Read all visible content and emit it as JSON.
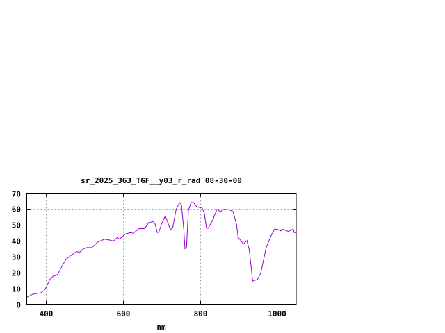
{
  "chart_data": {
    "type": "line",
    "title": "sr_2025_363_TGF__y03_r_rad 08-30-00",
    "xlabel": "nm",
    "ylabel": "",
    "xlim": [
      350,
      1050
    ],
    "ylim": [
      0,
      70
    ],
    "xticks": [
      400,
      600,
      800,
      1000
    ],
    "yticks": [
      0,
      10,
      20,
      30,
      40,
      50,
      60,
      70
    ],
    "grid": true,
    "line_color": "#9400d3",
    "series": [
      {
        "x": [
          350,
          365,
          377,
          386,
          395,
          401,
          410,
          419,
          426,
          431,
          440,
          452,
          464,
          473,
          479,
          488,
          497,
          506,
          519,
          534,
          552,
          564,
          575,
          585,
          591,
          606,
          618,
          627,
          642,
          657,
          666,
          678,
          683,
          689,
          693,
          702,
          710,
          716,
          723,
          729,
          738,
          747,
          752,
          758,
          761,
          765,
          770,
          777,
          784,
          792,
          805,
          811,
          817,
          821,
          832,
          844,
          853,
          862,
          877,
          886,
          895,
          899,
          913,
          922,
          928,
          937,
          949,
          958,
          972,
          985,
          994,
          1003,
          1010,
          1014,
          1021,
          1030,
          1036,
          1042,
          1045,
          1050
        ],
        "y": [
          4.4,
          6.3,
          6.9,
          7.1,
          8.7,
          10.9,
          15.6,
          17.8,
          18.2,
          19,
          23.3,
          28.4,
          30.6,
          32.1,
          33.2,
          32.8,
          35,
          35.7,
          35.7,
          39.2,
          41,
          40.5,
          39.8,
          42,
          41.1,
          44.2,
          45.1,
          44.8,
          47.7,
          47.7,
          51.3,
          52.1,
          51,
          45.2,
          45.5,
          51.8,
          55.7,
          51.8,
          47.1,
          48.1,
          59.8,
          63.9,
          62.7,
          46.7,
          35,
          35.7,
          59.1,
          64.2,
          63.9,
          61.3,
          60.8,
          57.6,
          48.1,
          47.8,
          52.5,
          59.8,
          58.3,
          59.8,
          59.5,
          58.3,
          50.3,
          42.3,
          37.9,
          40.1,
          34.3,
          14.6,
          15.6,
          19.7,
          35.7,
          43.3,
          47.4,
          47.1,
          46.2,
          47.4,
          46.7,
          45.9,
          46.7,
          47.4,
          45.2,
          45.2
        ]
      }
    ]
  }
}
